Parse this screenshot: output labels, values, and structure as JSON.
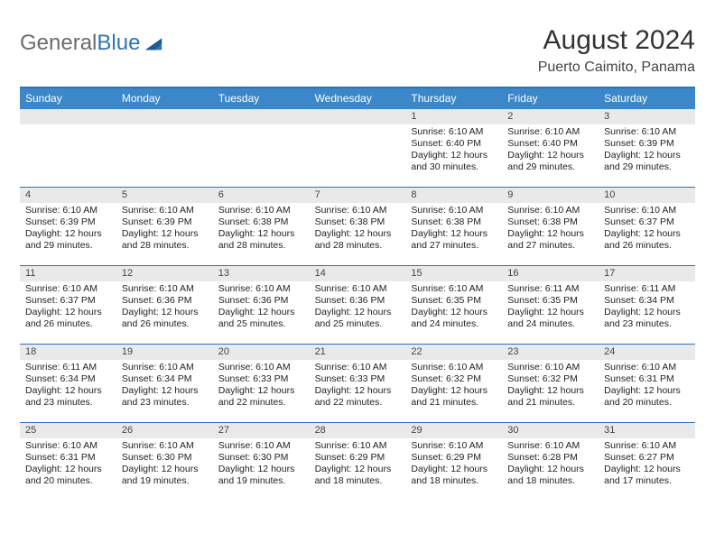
{
  "logo": {
    "part1": "General",
    "part2": "Blue"
  },
  "title": "August 2024",
  "subtitle": "Puerto Caimito, Panama",
  "colors": {
    "header_bg": "#3b87ca",
    "border": "#2f72b8",
    "daynum_bg": "#e9e9ea",
    "logo_gray": "#6b6b6b",
    "logo_blue": "#2f72b8"
  },
  "day_names": [
    "Sunday",
    "Monday",
    "Tuesday",
    "Wednesday",
    "Thursday",
    "Friday",
    "Saturday"
  ],
  "weeks": [
    [
      {
        "num": "",
        "sunrise": "",
        "sunset": "",
        "daylight": ""
      },
      {
        "num": "",
        "sunrise": "",
        "sunset": "",
        "daylight": ""
      },
      {
        "num": "",
        "sunrise": "",
        "sunset": "",
        "daylight": ""
      },
      {
        "num": "",
        "sunrise": "",
        "sunset": "",
        "daylight": ""
      },
      {
        "num": "1",
        "sunrise": "Sunrise: 6:10 AM",
        "sunset": "Sunset: 6:40 PM",
        "daylight": "Daylight: 12 hours and 30 minutes."
      },
      {
        "num": "2",
        "sunrise": "Sunrise: 6:10 AM",
        "sunset": "Sunset: 6:40 PM",
        "daylight": "Daylight: 12 hours and 29 minutes."
      },
      {
        "num": "3",
        "sunrise": "Sunrise: 6:10 AM",
        "sunset": "Sunset: 6:39 PM",
        "daylight": "Daylight: 12 hours and 29 minutes."
      }
    ],
    [
      {
        "num": "4",
        "sunrise": "Sunrise: 6:10 AM",
        "sunset": "Sunset: 6:39 PM",
        "daylight": "Daylight: 12 hours and 29 minutes."
      },
      {
        "num": "5",
        "sunrise": "Sunrise: 6:10 AM",
        "sunset": "Sunset: 6:39 PM",
        "daylight": "Daylight: 12 hours and 28 minutes."
      },
      {
        "num": "6",
        "sunrise": "Sunrise: 6:10 AM",
        "sunset": "Sunset: 6:38 PM",
        "daylight": "Daylight: 12 hours and 28 minutes."
      },
      {
        "num": "7",
        "sunrise": "Sunrise: 6:10 AM",
        "sunset": "Sunset: 6:38 PM",
        "daylight": "Daylight: 12 hours and 28 minutes."
      },
      {
        "num": "8",
        "sunrise": "Sunrise: 6:10 AM",
        "sunset": "Sunset: 6:38 PM",
        "daylight": "Daylight: 12 hours and 27 minutes."
      },
      {
        "num": "9",
        "sunrise": "Sunrise: 6:10 AM",
        "sunset": "Sunset: 6:38 PM",
        "daylight": "Daylight: 12 hours and 27 minutes."
      },
      {
        "num": "10",
        "sunrise": "Sunrise: 6:10 AM",
        "sunset": "Sunset: 6:37 PM",
        "daylight": "Daylight: 12 hours and 26 minutes."
      }
    ],
    [
      {
        "num": "11",
        "sunrise": "Sunrise: 6:10 AM",
        "sunset": "Sunset: 6:37 PM",
        "daylight": "Daylight: 12 hours and 26 minutes."
      },
      {
        "num": "12",
        "sunrise": "Sunrise: 6:10 AM",
        "sunset": "Sunset: 6:36 PM",
        "daylight": "Daylight: 12 hours and 26 minutes."
      },
      {
        "num": "13",
        "sunrise": "Sunrise: 6:10 AM",
        "sunset": "Sunset: 6:36 PM",
        "daylight": "Daylight: 12 hours and 25 minutes."
      },
      {
        "num": "14",
        "sunrise": "Sunrise: 6:10 AM",
        "sunset": "Sunset: 6:36 PM",
        "daylight": "Daylight: 12 hours and 25 minutes."
      },
      {
        "num": "15",
        "sunrise": "Sunrise: 6:10 AM",
        "sunset": "Sunset: 6:35 PM",
        "daylight": "Daylight: 12 hours and 24 minutes."
      },
      {
        "num": "16",
        "sunrise": "Sunrise: 6:11 AM",
        "sunset": "Sunset: 6:35 PM",
        "daylight": "Daylight: 12 hours and 24 minutes."
      },
      {
        "num": "17",
        "sunrise": "Sunrise: 6:11 AM",
        "sunset": "Sunset: 6:34 PM",
        "daylight": "Daylight: 12 hours and 23 minutes."
      }
    ],
    [
      {
        "num": "18",
        "sunrise": "Sunrise: 6:11 AM",
        "sunset": "Sunset: 6:34 PM",
        "daylight": "Daylight: 12 hours and 23 minutes."
      },
      {
        "num": "19",
        "sunrise": "Sunrise: 6:10 AM",
        "sunset": "Sunset: 6:34 PM",
        "daylight": "Daylight: 12 hours and 23 minutes."
      },
      {
        "num": "20",
        "sunrise": "Sunrise: 6:10 AM",
        "sunset": "Sunset: 6:33 PM",
        "daylight": "Daylight: 12 hours and 22 minutes."
      },
      {
        "num": "21",
        "sunrise": "Sunrise: 6:10 AM",
        "sunset": "Sunset: 6:33 PM",
        "daylight": "Daylight: 12 hours and 22 minutes."
      },
      {
        "num": "22",
        "sunrise": "Sunrise: 6:10 AM",
        "sunset": "Sunset: 6:32 PM",
        "daylight": "Daylight: 12 hours and 21 minutes."
      },
      {
        "num": "23",
        "sunrise": "Sunrise: 6:10 AM",
        "sunset": "Sunset: 6:32 PM",
        "daylight": "Daylight: 12 hours and 21 minutes."
      },
      {
        "num": "24",
        "sunrise": "Sunrise: 6:10 AM",
        "sunset": "Sunset: 6:31 PM",
        "daylight": "Daylight: 12 hours and 20 minutes."
      }
    ],
    [
      {
        "num": "25",
        "sunrise": "Sunrise: 6:10 AM",
        "sunset": "Sunset: 6:31 PM",
        "daylight": "Daylight: 12 hours and 20 minutes."
      },
      {
        "num": "26",
        "sunrise": "Sunrise: 6:10 AM",
        "sunset": "Sunset: 6:30 PM",
        "daylight": "Daylight: 12 hours and 19 minutes."
      },
      {
        "num": "27",
        "sunrise": "Sunrise: 6:10 AM",
        "sunset": "Sunset: 6:30 PM",
        "daylight": "Daylight: 12 hours and 19 minutes."
      },
      {
        "num": "28",
        "sunrise": "Sunrise: 6:10 AM",
        "sunset": "Sunset: 6:29 PM",
        "daylight": "Daylight: 12 hours and 18 minutes."
      },
      {
        "num": "29",
        "sunrise": "Sunrise: 6:10 AM",
        "sunset": "Sunset: 6:29 PM",
        "daylight": "Daylight: 12 hours and 18 minutes."
      },
      {
        "num": "30",
        "sunrise": "Sunrise: 6:10 AM",
        "sunset": "Sunset: 6:28 PM",
        "daylight": "Daylight: 12 hours and 18 minutes."
      },
      {
        "num": "31",
        "sunrise": "Sunrise: 6:10 AM",
        "sunset": "Sunset: 6:27 PM",
        "daylight": "Daylight: 12 hours and 17 minutes."
      }
    ]
  ]
}
